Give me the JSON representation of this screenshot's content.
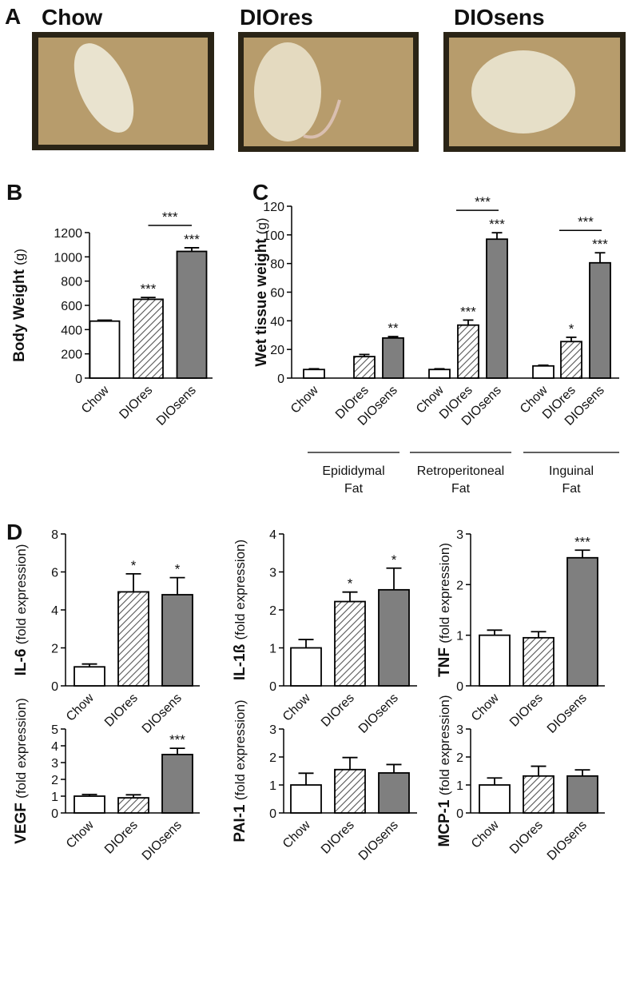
{
  "photos": {
    "panel": "A",
    "labels": [
      "Chow",
      "DIOres",
      "DIOsens"
    ]
  },
  "chart_data": [
    {
      "type": "bar",
      "panel": "B",
      "ylabel": "Body Weight",
      "ylabel_unit": "(g)",
      "categories": [
        "Chow",
        "DIOres",
        "DIOsens"
      ],
      "values": [
        470,
        650,
        1045
      ],
      "errors": [
        8,
        15,
        30
      ],
      "colors": [
        "#ffffff",
        "#555555",
        "#7f7f7f"
      ],
      "hatched": [
        false,
        true,
        false
      ],
      "significance": [
        null,
        "***",
        "***"
      ],
      "brackets": [
        {
          "between": [
            1,
            2
          ],
          "label": "***"
        }
      ],
      "ylim": [
        0,
        1200
      ],
      "yticks": [
        0,
        200,
        400,
        600,
        800,
        1000,
        1200
      ]
    },
    {
      "type": "grouped_bar",
      "panel": "C",
      "ylabel": "Wet tissue weight",
      "ylabel_unit": "(g)",
      "groups": [
        [
          "Epididymal",
          "Fat"
        ],
        [
          "Retroperitoneal",
          "Fat"
        ],
        [
          "Inguinal",
          "Fat"
        ]
      ],
      "series": [
        {
          "name": "Chow",
          "color": "#ffffff",
          "hatched": false,
          "values": [
            6,
            6,
            8.5
          ],
          "errors": [
            0.5,
            0.5,
            0.5
          ],
          "significance": [
            null,
            null,
            null
          ]
        },
        {
          "name": "DIOres",
          "color": "#555555",
          "hatched": true,
          "values": [
            15,
            37,
            25.5
          ],
          "errors": [
            1.5,
            3.5,
            3
          ],
          "significance": [
            null,
            "***",
            "*"
          ]
        },
        {
          "name": "DIOsens",
          "color": "#7f7f7f",
          "hatched": false,
          "values": [
            28,
            97,
            80.5
          ],
          "errors": [
            1,
            4.5,
            7
          ],
          "significance": [
            "**",
            "***",
            "***"
          ]
        }
      ],
      "brackets": [
        {
          "group": 1,
          "between": [
            1,
            2
          ],
          "label": "***"
        },
        {
          "group": 2,
          "between": [
            1,
            2
          ],
          "label": "***"
        }
      ],
      "ylim": [
        0,
        120
      ],
      "yticks": [
        0,
        20,
        40,
        60,
        80,
        100,
        120
      ]
    },
    {
      "type": "bar",
      "panel": "D",
      "ylabel": "IL-6",
      "ylabel_unit": "(fold expression)",
      "categories": [
        "Chow",
        "DIOres",
        "DIOsens"
      ],
      "values": [
        1.0,
        4.95,
        4.8
      ],
      "errors": [
        0.15,
        0.95,
        0.9
      ],
      "colors": [
        "#ffffff",
        "#555555",
        "#7f7f7f"
      ],
      "hatched": [
        false,
        true,
        false
      ],
      "significance": [
        null,
        "*",
        "*"
      ],
      "ylim": [
        0,
        8
      ],
      "yticks": [
        0,
        2,
        4,
        6,
        8
      ]
    },
    {
      "type": "bar",
      "ylabel": "IL-1ß",
      "ylabel_unit": "(fold expression)",
      "categories": [
        "Chow",
        "DIOres",
        "DIOsens"
      ],
      "values": [
        1.0,
        2.22,
        2.53
      ],
      "errors": [
        0.22,
        0.25,
        0.57
      ],
      "colors": [
        "#ffffff",
        "#555555",
        "#7f7f7f"
      ],
      "hatched": [
        false,
        true,
        false
      ],
      "significance": [
        null,
        "*",
        "*"
      ],
      "ylim": [
        0,
        4
      ],
      "yticks": [
        0,
        1,
        2,
        3,
        4
      ]
    },
    {
      "type": "bar",
      "ylabel": "TNF",
      "ylabel_unit": "(fold expression)",
      "categories": [
        "Chow",
        "DIOres",
        "DIOsens"
      ],
      "values": [
        1.0,
        0.95,
        2.53
      ],
      "errors": [
        0.1,
        0.12,
        0.15
      ],
      "colors": [
        "#ffffff",
        "#555555",
        "#7f7f7f"
      ],
      "hatched": [
        false,
        true,
        false
      ],
      "significance": [
        null,
        null,
        "***"
      ],
      "ylim": [
        0,
        3
      ],
      "yticks": [
        0,
        1,
        2,
        3
      ]
    },
    {
      "type": "bar",
      "ylabel": "VEGF",
      "ylabel_unit": "(fold expression)",
      "categories": [
        "Chow",
        "DIOres",
        "DIOsens"
      ],
      "values": [
        1.0,
        0.9,
        3.48
      ],
      "errors": [
        0.1,
        0.18,
        0.37
      ],
      "colors": [
        "#ffffff",
        "#555555",
        "#7f7f7f"
      ],
      "hatched": [
        false,
        true,
        false
      ],
      "significance": [
        null,
        null,
        "***"
      ],
      "ylim": [
        0,
        5
      ],
      "yticks": [
        0,
        1,
        2,
        3,
        4,
        5
      ]
    },
    {
      "type": "bar",
      "ylabel": "PAI-1",
      "ylabel_unit": "(fold expression)",
      "categories": [
        "Chow",
        "DIOres",
        "DIOsens"
      ],
      "values": [
        1.0,
        1.55,
        1.43
      ],
      "errors": [
        0.42,
        0.43,
        0.3
      ],
      "colors": [
        "#ffffff",
        "#555555",
        "#7f7f7f"
      ],
      "hatched": [
        false,
        true,
        false
      ],
      "significance": [
        null,
        null,
        null
      ],
      "ylim": [
        0,
        3
      ],
      "yticks": [
        0,
        1,
        2,
        3
      ]
    },
    {
      "type": "bar",
      "ylabel": "MCP-1",
      "ylabel_unit": "(fold expression)",
      "categories": [
        "Chow",
        "DIOres",
        "DIOsens"
      ],
      "values": [
        1.0,
        1.32,
        1.32
      ],
      "errors": [
        0.25,
        0.35,
        0.22
      ],
      "colors": [
        "#ffffff",
        "#555555",
        "#7f7f7f"
      ],
      "hatched": [
        false,
        true,
        false
      ],
      "significance": [
        null,
        null,
        null
      ],
      "ylim": [
        0,
        3
      ],
      "yticks": [
        0,
        1,
        2,
        3
      ]
    }
  ]
}
